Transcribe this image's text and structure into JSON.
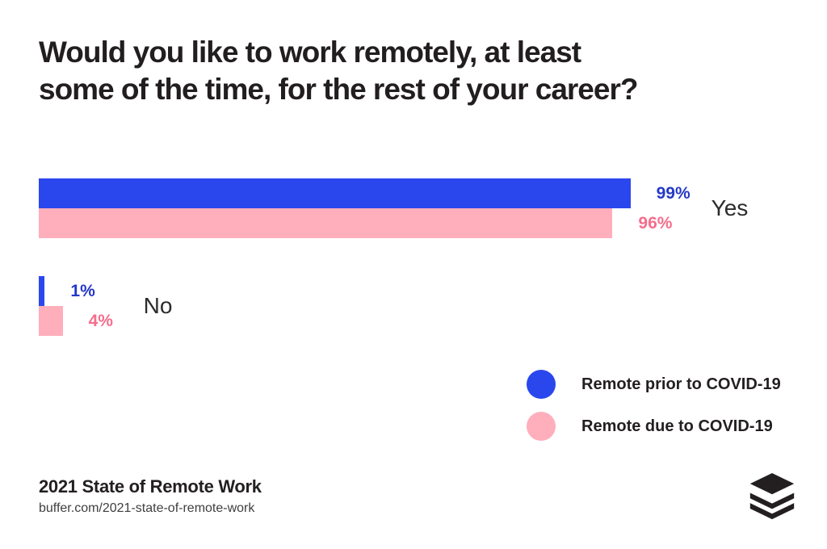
{
  "title_lines": [
    "Would you like to work remotely, at least",
    "some of the time, for the rest of your career?"
  ],
  "chart_data": {
    "type": "bar",
    "orientation": "horizontal",
    "title": "Would you like to work remotely, at least some of the time, for the rest of your career?",
    "categories": [
      "Yes",
      "No"
    ],
    "series": [
      {
        "name": "Remote prior to COVID-19",
        "color": "#2A47EE",
        "label_color": "#2438C8",
        "values": [
          99,
          1
        ]
      },
      {
        "name": "Remote due to COVID-19",
        "color": "#FFAEBC",
        "label_color": "#F56E8C",
        "values": [
          96,
          4
        ]
      }
    ],
    "value_suffix": "%",
    "value_labels": {
      "yes": [
        "99%",
        "96%"
      ],
      "no": [
        "1%",
        "4%"
      ]
    },
    "xlim": [
      0,
      100
    ],
    "grid": false,
    "axes_shown": false,
    "legend_position": "bottom-right"
  },
  "footer": {
    "title": "2021 State of Remote Work",
    "url": "buffer.com/2021-state-of-remote-work"
  },
  "logo": {
    "icon": "buffer-stack-icon",
    "color": "#231F20"
  }
}
